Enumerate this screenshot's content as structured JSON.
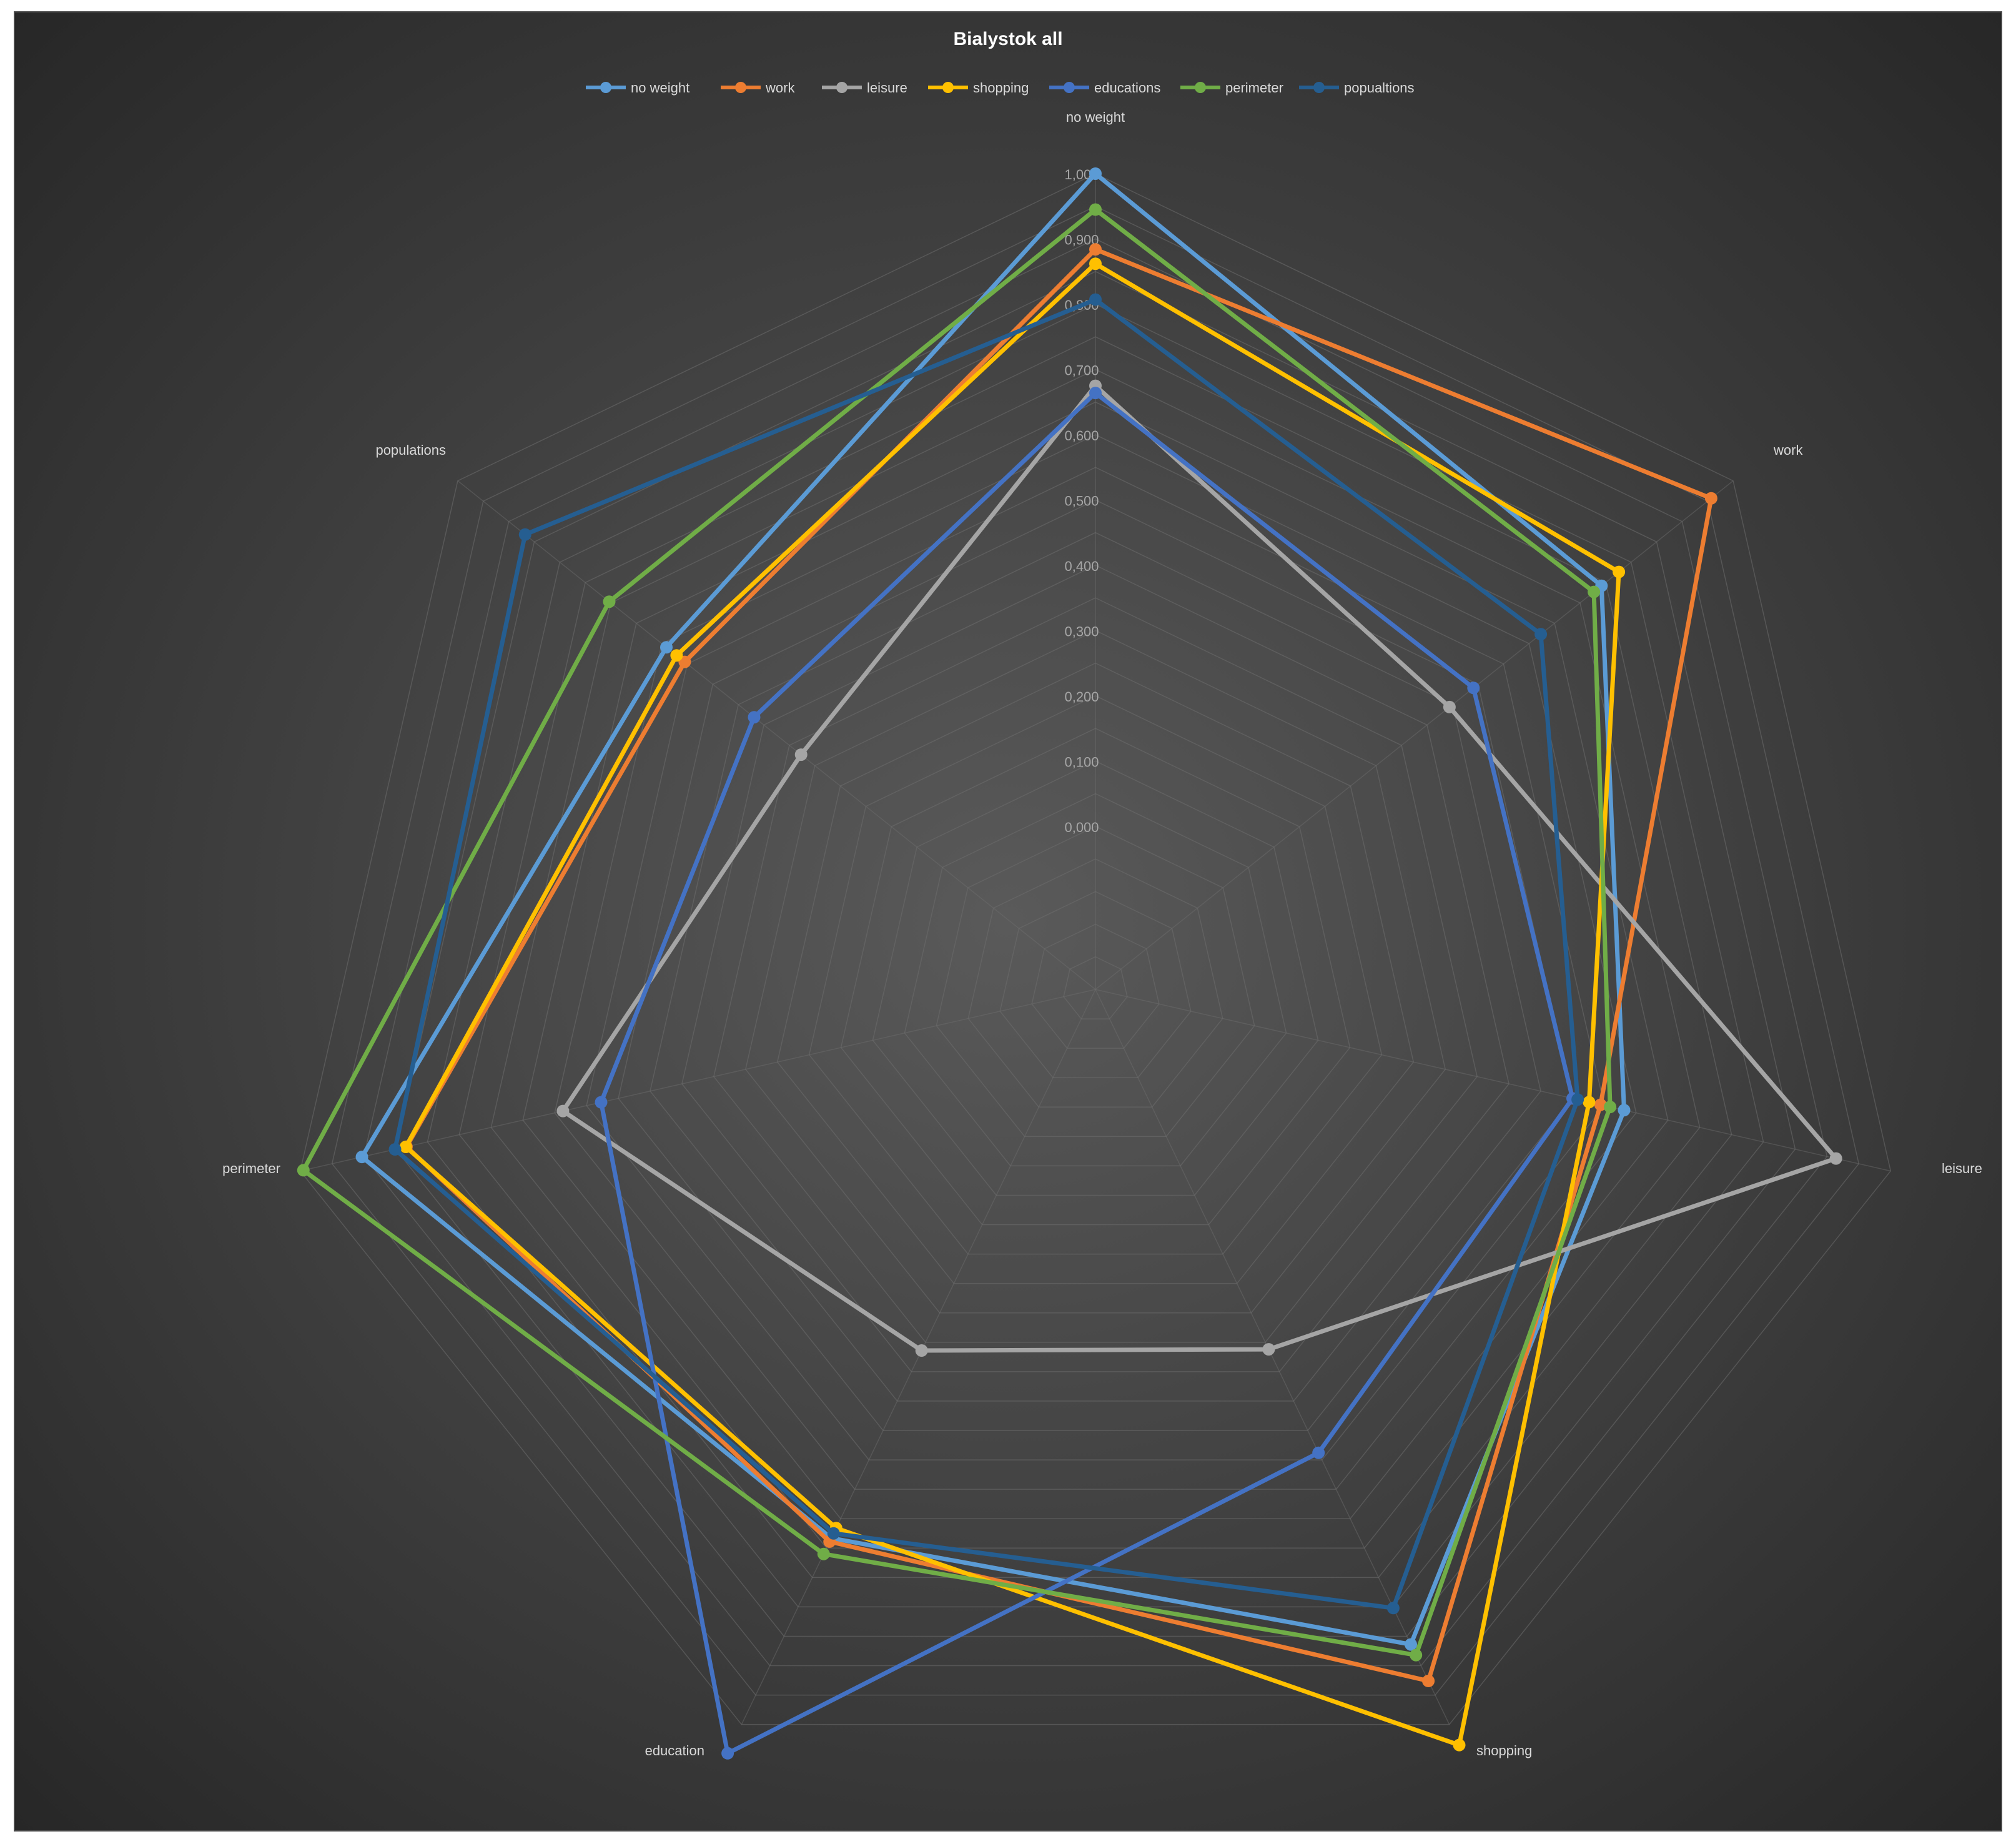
{
  "chart_data": {
    "type": "radar",
    "title": "Bialystok all",
    "axes": [
      "no weight",
      "work",
      "leisure",
      "shopping",
      "education",
      "perimeter",
      "populations"
    ],
    "ticks": [
      "0,000",
      "0,100",
      "0,200",
      "0,300",
      "0,400",
      "0,500",
      "0,600",
      "0,700",
      "0,800",
      "0,900",
      "1,000"
    ],
    "rmin": -0.25,
    "rmax": 1.0,
    "grid": true,
    "legend_position": "top",
    "series": [
      {
        "name": "no weight",
        "color": "#5b9bd5",
        "values": [
          1.0,
          0.742,
          0.581,
          0.864,
          0.683,
          0.903,
          0.591
        ]
      },
      {
        "name": "work",
        "color": "#ed7d31",
        "values": [
          0.884,
          0.957,
          0.544,
          0.926,
          0.689,
          0.833,
          0.555
        ]
      },
      {
        "name": "leisure",
        "color": "#a5a5a5",
        "values": [
          0.675,
          0.444,
          0.914,
          0.362,
          0.364,
          0.587,
          0.327
        ]
      },
      {
        "name": "shopping",
        "color": "#ffc000",
        "values": [
          0.862,
          0.776,
          0.526,
          1.035,
          0.666,
          0.834,
          0.571
        ]
      },
      {
        "name": "educations",
        "color": "#4472c4",
        "values": [
          0.664,
          0.491,
          0.5,
          0.538,
          1.049,
          0.527,
          0.419
        ]
      },
      {
        "name": "perimeter",
        "color": "#70ad47",
        "values": [
          0.945,
          0.727,
          0.559,
          0.882,
          0.71,
          0.995,
          0.703
        ]
      },
      {
        "name": "popualtions",
        "color": "#255e91",
        "values": [
          0.807,
          0.623,
          0.508,
          0.802,
          0.675,
          0.851,
          0.868
        ]
      }
    ]
  }
}
